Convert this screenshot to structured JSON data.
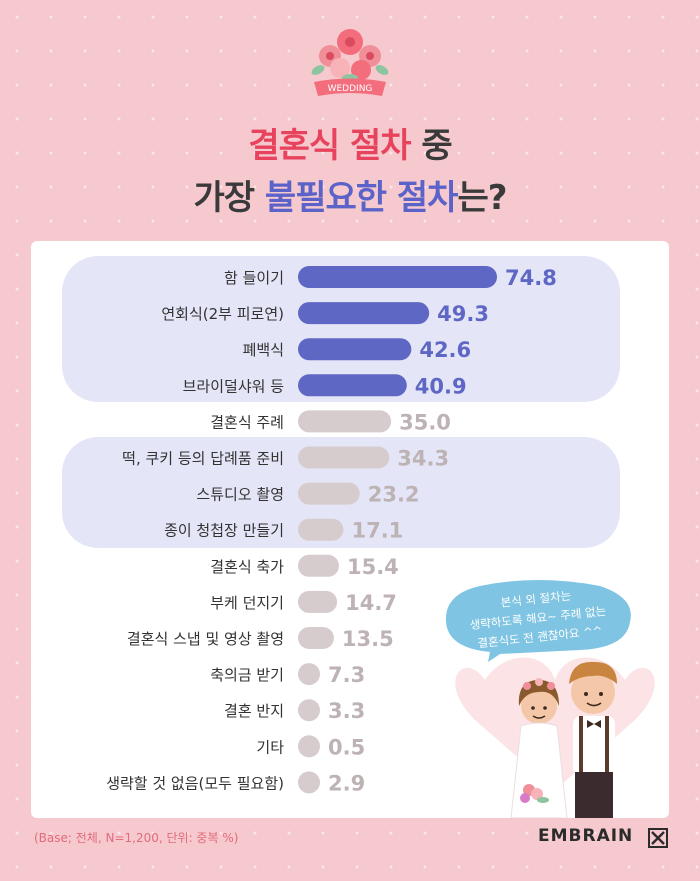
{
  "badge": {
    "text": "WEDDING"
  },
  "title": {
    "line1_highlight": "결혼식 절차",
    "line1_rest": " 중",
    "line2_start": "가장 ",
    "line2_highlight": "불필요한 절차",
    "line2_end": "는?"
  },
  "chart_data": {
    "type": "bar",
    "orientation": "horizontal",
    "categories": [
      "함 들이기",
      "연회식(2부 피로연)",
      "폐백식",
      "브라이덜샤워 등",
      "결혼식 주례",
      "떡, 쿠키 등의 답례품 준비",
      "스튜디오 촬영",
      "종이 청첩장 만들기",
      "결혼식 축가",
      "부케 던지기",
      "결혼식 스냅 및 영상 촬영",
      "축의금 받기",
      "결혼 반지",
      "기타",
      "생략할 것 없음(모두 필요함)"
    ],
    "values": [
      74.8,
      49.3,
      42.6,
      40.9,
      35.0,
      34.3,
      23.2,
      17.1,
      15.4,
      14.7,
      13.5,
      7.3,
      3.3,
      0.5,
      2.9
    ],
    "value_labels": [
      "74.8",
      "49.3",
      "42.6",
      "40.9",
      "35.0",
      "34.3",
      "23.2",
      "17.1",
      "15.4",
      "14.7",
      "13.5",
      "7.3",
      "3.3",
      "0.5",
      "2.9"
    ],
    "highlight_top": 4,
    "highlight_group": [
      5,
      7
    ],
    "colors": {
      "top": "#5f67c4",
      "rest": "#d6cbcd",
      "top_label": "#5f67c4",
      "rest_label": "#bdb2b4",
      "group_bg": "#e4e6f8"
    },
    "title": "",
    "xlabel": "",
    "ylabel": ""
  },
  "bubble": {
    "line1": "본식 외 절차는",
    "line2": "생략하도록 해요~ 주례 없는",
    "line3": "결혼식도 전 괜찮아요 ^^"
  },
  "footnote": "(Base; 전체, N=1,200, 단위: 중복 %)",
  "brand": "EMBRAIN"
}
